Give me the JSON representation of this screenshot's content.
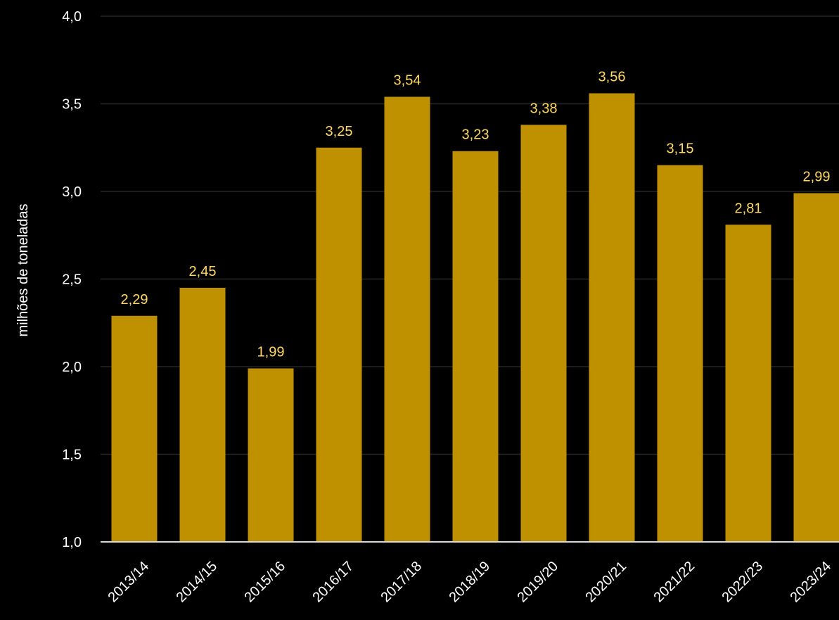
{
  "chart_data": {
    "type": "bar",
    "title": "",
    "xlabel": "",
    "ylabel": "milhões de toneladas",
    "categories": [
      "2013/14",
      "2014/15",
      "2015/16",
      "2016/17",
      "2017/18",
      "2018/19",
      "2019/20",
      "2020/21",
      "2021/22",
      "2022/23",
      "2023/24"
    ],
    "values": [
      2.29,
      2.45,
      1.99,
      3.25,
      3.54,
      3.23,
      3.38,
      3.56,
      3.15,
      2.81,
      2.99
    ],
    "value_labels": [
      "2,29",
      "2,45",
      "1,99",
      "3,25",
      "3,54",
      "3,23",
      "3,38",
      "3,56",
      "3,15",
      "2,81",
      "2,99"
    ],
    "ylim": [
      1.0,
      4.0
    ],
    "yticks": [
      1.0,
      1.5,
      2.0,
      2.5,
      3.0,
      3.5,
      4.0
    ],
    "ytick_labels": [
      "1,0",
      "1,5",
      "2,0",
      "2,5",
      "3,0",
      "3,5",
      "4,0"
    ],
    "grid": true,
    "legend": "none",
    "colors": {
      "background": "#000000",
      "bar": "#BF9000",
      "data_label": "#FFD966",
      "text": "#FFFFFF",
      "grid": "#262626",
      "axis": "#D9D9D9"
    }
  }
}
